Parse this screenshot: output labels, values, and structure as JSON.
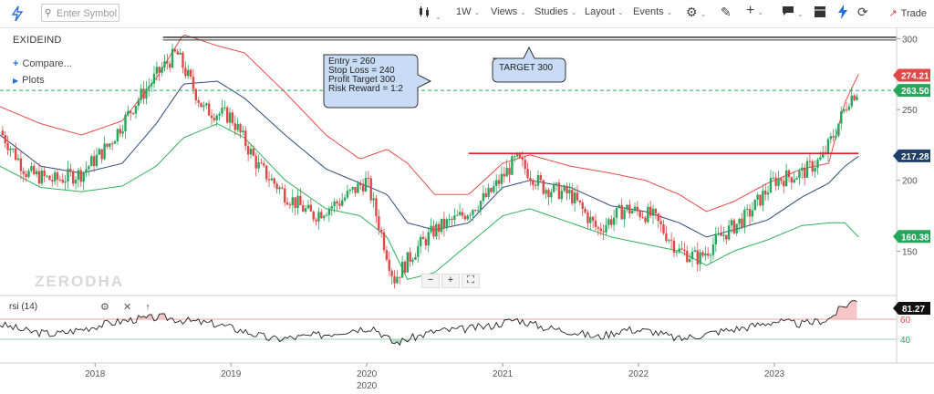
{
  "toolbar": {
    "search_placeholder": "Enter Symbol",
    "interval": "1W",
    "views": "Views",
    "studies": "Studies",
    "layout": "Layout",
    "events": "Events",
    "trade": "Trade"
  },
  "left_panel": {
    "symbol": "EXIDEIND",
    "compare": "Compare...",
    "plots": "Plots"
  },
  "watermark": "ZERODHA",
  "annotations": {
    "note_lines": [
      "Entry = 260",
      "Stop Loss = 240",
      "Profit Target 300",
      "Risk Reward = 1:2"
    ],
    "target_label": "TARGET 300"
  },
  "rsi": {
    "label": "rsi (14)",
    "value_badge": "81.27",
    "levels": [
      60,
      40
    ],
    "level_labels": [
      "60",
      "40"
    ]
  },
  "colors": {
    "up": "#26a65b",
    "down": "#e04848",
    "upper_band": "#e84a4a",
    "lower_band": "#2fb35a",
    "middle_band": "#2c4a7a",
    "note_fill": "#c9dcf6",
    "target_line": "#333333",
    "resistance_line": "#e0202f"
  },
  "chart_data": {
    "type": "candlestick",
    "symbol": "EXIDEIND",
    "interval": "1W",
    "x_axis": {
      "ticks": [
        "2018",
        "2019",
        "2020",
        "2021",
        "2022",
        "2023"
      ],
      "tick_positions": [
        2018.0,
        2019.0,
        2020.0,
        2021.0,
        2022.0,
        2023.0
      ],
      "range": [
        2017.3,
        2023.9
      ]
    },
    "y_axis": {
      "ticks": [
        150,
        200,
        250,
        300
      ],
      "range": [
        120,
        308
      ],
      "tick_labels": [
        "150",
        "200",
        "250",
        "300"
      ]
    },
    "price_badges": [
      {
        "label": "274.21",
        "value": 274.21,
        "color": "#e04848"
      },
      {
        "label": "263.50",
        "value": 263.5,
        "color": "#26a65b"
      },
      {
        "label": "217.28",
        "value": 217.28,
        "color": "#1f3f66"
      },
      {
        "label": "160.38",
        "value": 160.38,
        "color": "#26a65b"
      }
    ],
    "horizontal_lines": [
      {
        "value": 301,
        "from": 2018.5,
        "to": 2023.9,
        "color": "#333333"
      },
      {
        "value": 219,
        "from": 2020.75,
        "to": 2023.62,
        "color": "#e0202f"
      },
      {
        "value": 263.5,
        "from": 2017.3,
        "to": 2023.9,
        "color": "#26a65b",
        "dashed": true
      }
    ],
    "close_anchors": {
      "t": [
        2017.3,
        2017.5,
        2017.7,
        2017.9,
        2018.1,
        2018.3,
        2018.5,
        2018.6,
        2018.8,
        2019.0,
        2019.2,
        2019.4,
        2019.6,
        2019.8,
        2020.0,
        2020.1,
        2020.2,
        2020.35,
        2020.5,
        2020.7,
        2020.9,
        2021.1,
        2021.3,
        2021.5,
        2021.7,
        2021.9,
        2022.1,
        2022.3,
        2022.45,
        2022.6,
        2022.8,
        2023.0,
        2023.2,
        2023.35,
        2023.45,
        2023.55,
        2023.62
      ],
      "close": [
        235,
        205,
        200,
        205,
        225,
        255,
        280,
        290,
        250,
        245,
        210,
        190,
        175,
        185,
        200,
        165,
        130,
        150,
        165,
        175,
        190,
        215,
        195,
        190,
        165,
        180,
        175,
        150,
        145,
        160,
        175,
        200,
        205,
        215,
        235,
        258,
        264
      ]
    },
    "bollinger": {
      "t": [
        2017.3,
        2017.6,
        2017.9,
        2018.2,
        2018.45,
        2018.65,
        2018.9,
        2019.1,
        2019.4,
        2019.7,
        2019.95,
        2020.15,
        2020.3,
        2020.5,
        2020.75,
        2021.0,
        2021.2,
        2021.5,
        2021.8,
        2022.05,
        2022.3,
        2022.5,
        2022.7,
        2022.95,
        2023.2,
        2023.4,
        2023.52,
        2023.62
      ],
      "upper": [
        252,
        240,
        232,
        242,
        272,
        303,
        295,
        290,
        262,
        232,
        215,
        222,
        212,
        190,
        190,
        212,
        218,
        210,
        205,
        200,
        190,
        178,
        185,
        198,
        208,
        212,
        255,
        275
      ],
      "middle": [
        232,
        210,
        205,
        212,
        240,
        268,
        270,
        258,
        232,
        208,
        198,
        190,
        170,
        165,
        170,
        195,
        200,
        195,
        182,
        178,
        170,
        160,
        165,
        172,
        188,
        198,
        210,
        217
      ],
      "lower": [
        210,
        195,
        192,
        196,
        210,
        230,
        240,
        230,
        200,
        180,
        175,
        160,
        130,
        135,
        155,
        175,
        180,
        170,
        160,
        155,
        150,
        140,
        150,
        158,
        168,
        170,
        170,
        160
      ]
    },
    "rsi": {
      "t": [
        2017.3,
        2017.5,
        2017.7,
        2017.9,
        2018.1,
        2018.3,
        2018.5,
        2018.7,
        2018.9,
        2019.1,
        2019.3,
        2019.5,
        2019.7,
        2019.9,
        2020.05,
        2020.2,
        2020.35,
        2020.5,
        2020.7,
        2020.9,
        2021.1,
        2021.3,
        2021.5,
        2021.7,
        2021.9,
        2022.1,
        2022.3,
        2022.45,
        2022.6,
        2022.8,
        2023.0,
        2023.2,
        2023.4,
        2023.5,
        2023.62
      ],
      "values": [
        55,
        48,
        45,
        50,
        56,
        60,
        62,
        58,
        55,
        48,
        40,
        42,
        45,
        50,
        52,
        36,
        42,
        48,
        50,
        53,
        60,
        52,
        48,
        42,
        50,
        48,
        40,
        44,
        48,
        52,
        58,
        55,
        60,
        72,
        81.27
      ],
      "range": [
        20,
        80
      ]
    }
  }
}
